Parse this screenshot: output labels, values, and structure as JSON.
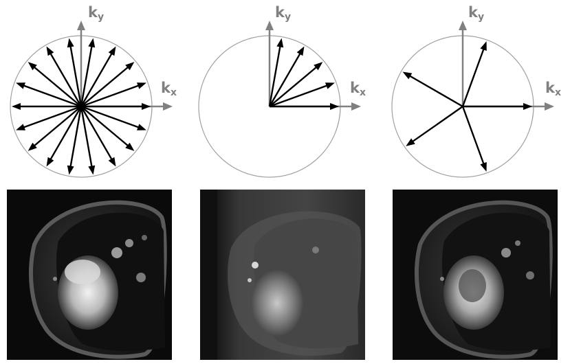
{
  "diagrams": [
    {
      "id": "full-radial",
      "kx_label": "k",
      "kx_sub": "x",
      "ky_label": "k",
      "ky_sub": "y",
      "spoke_angles_deg": [
        0,
        20,
        40,
        60,
        80,
        100,
        120,
        140,
        160,
        180,
        200,
        220,
        240,
        260,
        280,
        300,
        320,
        340
      ]
    },
    {
      "id": "half-sector-radial",
      "kx_label": "k",
      "kx_sub": "x",
      "ky_label": "k",
      "ky_sub": "y",
      "spoke_angles_deg": [
        0,
        20,
        40,
        60,
        80
      ]
    },
    {
      "id": "golden-angle-radial",
      "kx_label": "k",
      "kx_sub": "x",
      "ky_label": "k",
      "ky_sub": "y",
      "spoke_angles_deg": [
        0,
        70,
        150,
        215,
        290
      ]
    }
  ],
  "colors": {
    "axis": "#808080",
    "circle": "#a0a0a0",
    "spoke": "#000000",
    "image_bg": "#0a0a0a"
  }
}
